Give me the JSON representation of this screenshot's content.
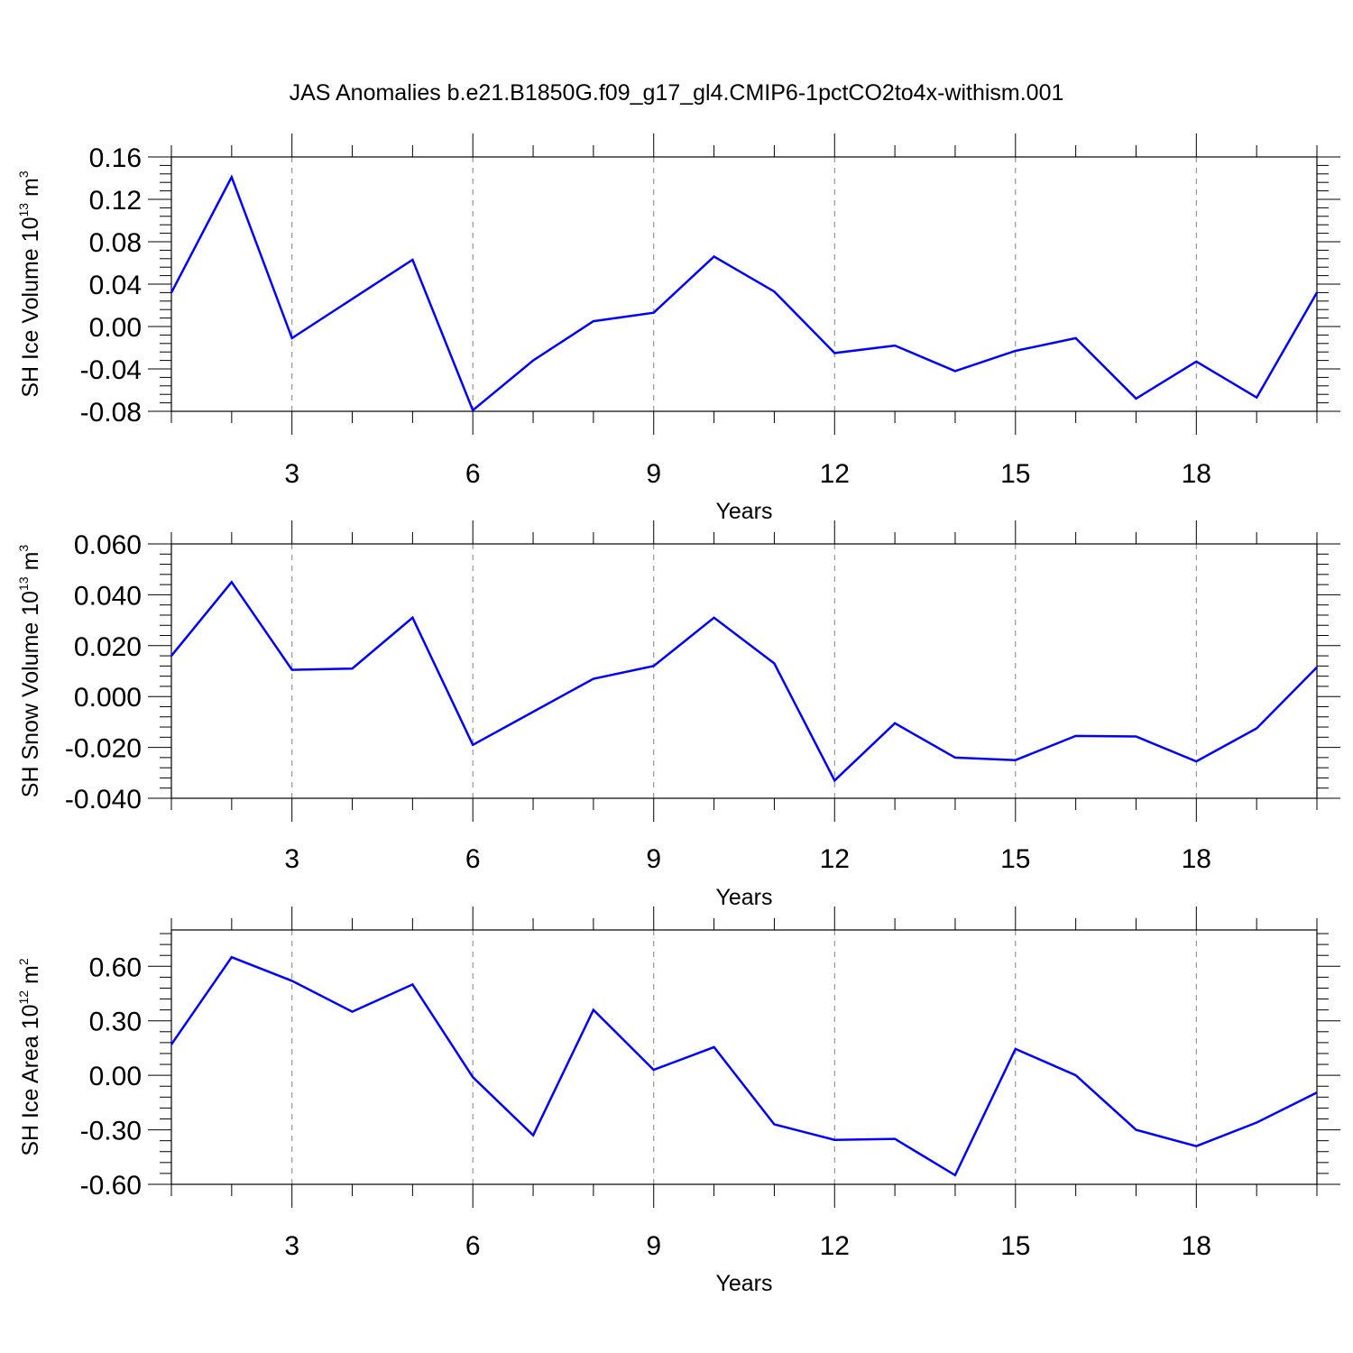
{
  "title": "JAS Anomalies b.e21.B1850G.f09_g17_gl4.CMIP6-1pctCO2to4x-withism.001",
  "colors": {
    "line": "#0000ff",
    "axis": "#000000",
    "grid": "#808080"
  },
  "chart_data": [
    {
      "type": "line",
      "ylabel_main": "SH Ice Volume 10",
      "ylabel_exp": "13",
      "ylabel_unit": " m",
      "ylabel_unit_exp": "3",
      "xlabel": "Years",
      "x": [
        1,
        2,
        3,
        4,
        5,
        6,
        7,
        8,
        9,
        10,
        11,
        12,
        13,
        14,
        15,
        16,
        17,
        18,
        19,
        20
      ],
      "values": [
        0.032,
        0.141,
        -0.011,
        0.026,
        0.063,
        -0.079,
        -0.032,
        0.005,
        0.013,
        0.066,
        0.033,
        -0.025,
        -0.018,
        -0.042,
        -0.023,
        -0.011,
        -0.068,
        -0.033,
        -0.067,
        0.032
      ],
      "xlim": [
        1,
        20
      ],
      "ylim": [
        -0.08,
        0.16
      ],
      "yticks": [
        -0.08,
        -0.04,
        0.0,
        0.04,
        0.08,
        0.12,
        0.16
      ],
      "ytick_labels": [
        "-0.08",
        "-0.04",
        "0.00",
        "0.04",
        "0.08",
        "0.12",
        "0.16"
      ],
      "xticks": [
        3,
        6,
        9,
        12,
        15,
        18
      ],
      "xtick_labels": [
        "3",
        "6",
        "9",
        "12",
        "15",
        "18"
      ]
    },
    {
      "type": "line",
      "ylabel_main": "SH Snow Volume 10",
      "ylabel_exp": "13",
      "ylabel_unit": " m",
      "ylabel_unit_exp": "3",
      "xlabel": "Years",
      "x": [
        1,
        2,
        3,
        4,
        5,
        6,
        7,
        8,
        9,
        10,
        11,
        12,
        13,
        14,
        15,
        16,
        17,
        18,
        19,
        20
      ],
      "values": [
        0.016,
        0.045,
        0.0105,
        0.011,
        0.031,
        -0.019,
        -0.006,
        0.007,
        0.012,
        0.031,
        0.013,
        -0.033,
        -0.0105,
        -0.024,
        -0.025,
        -0.0155,
        -0.0157,
        -0.0255,
        -0.0125,
        0.0115
      ],
      "xlim": [
        1,
        20
      ],
      "ylim": [
        -0.04,
        0.06
      ],
      "yticks": [
        -0.04,
        -0.02,
        0.0,
        0.02,
        0.04,
        0.06
      ],
      "ytick_labels": [
        "-0.040",
        "-0.020",
        "0.000",
        "0.020",
        "0.040",
        "0.060"
      ],
      "xticks": [
        3,
        6,
        9,
        12,
        15,
        18
      ],
      "xtick_labels": [
        "3",
        "6",
        "9",
        "12",
        "15",
        "18"
      ]
    },
    {
      "type": "line",
      "ylabel_main": "SH Ice Area 10",
      "ylabel_exp": "12",
      "ylabel_unit": " m",
      "ylabel_unit_exp": "2",
      "xlabel": "Years",
      "x": [
        1,
        2,
        3,
        4,
        5,
        6,
        7,
        8,
        9,
        10,
        11,
        12,
        13,
        14,
        15,
        16,
        17,
        18,
        19,
        20
      ],
      "values": [
        0.17,
        0.65,
        0.52,
        0.35,
        0.5,
        -0.01,
        -0.33,
        0.36,
        0.03,
        0.155,
        -0.27,
        -0.355,
        -0.35,
        -0.55,
        0.145,
        0.0,
        -0.3,
        -0.39,
        -0.26,
        -0.095
      ],
      "xlim": [
        1,
        20
      ],
      "ylim": [
        -0.6,
        0.8
      ],
      "yticks": [
        -0.6,
        -0.3,
        0.0,
        0.3,
        0.6
      ],
      "ytick_labels": [
        "-0.60",
        "-0.30",
        "0.00",
        "0.30",
        "0.60"
      ],
      "xticks": [
        3,
        6,
        9,
        12,
        15,
        18
      ],
      "xtick_labels": [
        "3",
        "6",
        "9",
        "12",
        "15",
        "18"
      ]
    }
  ]
}
